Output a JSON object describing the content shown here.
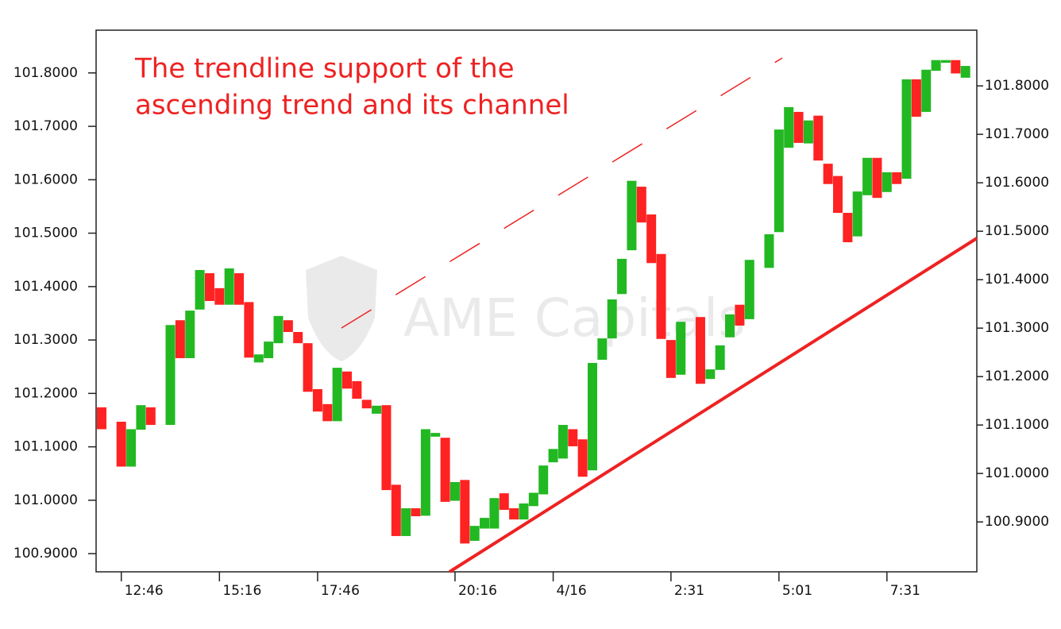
{
  "chart_data": {
    "type": "candlestick",
    "annotation": [
      "The trendline support of the",
      "ascending trend and its channel"
    ],
    "annotation_color": "#ee2222",
    "watermark": "AME Capitals",
    "up_color": "#22b822",
    "down_color": "#ff2222",
    "categories": [
      null,
      null,
      "12:46",
      null,
      null,
      null,
      null,
      null,
      null,
      null,
      null,
      null,
      "15:16",
      null,
      null,
      null,
      null,
      null,
      null,
      null,
      null,
      null,
      "17:46",
      null,
      null,
      null,
      null,
      null,
      null,
      null,
      null,
      null,
      null,
      null,
      null,
      null,
      "20:16",
      null,
      null,
      null,
      null,
      null,
      null,
      null,
      null,
      null,
      "4/16",
      null,
      null,
      null,
      null,
      null,
      null,
      null,
      null,
      null,
      null,
      null,
      "2:31",
      null,
      null,
      null,
      null,
      null,
      null,
      null,
      null,
      null,
      null,
      "5:01",
      null,
      null,
      null,
      null,
      null,
      null,
      null,
      null,
      null,
      null,
      "7:31",
      null,
      null,
      null,
      null,
      null,
      null,
      null,
      null
    ],
    "open": [
      101.174,
      null,
      101.147,
      101.063,
      101.132,
      101.174,
      null,
      101.141,
      101.337,
      101.266,
      101.357,
      101.425,
      101.397,
      101.366,
      101.425,
      101.371,
      101.258,
      101.266,
      101.294,
      101.337,
      101.315,
      101.294,
      101.208,
      101.18,
      101.148,
      101.241,
      101.223,
      101.188,
      101.162,
      101.178,
      101.029,
      100.933,
      100.985,
      100.971,
      101.119,
      101.117,
      100.999,
      101.038,
      100.924,
      100.947,
      100.947,
      101.013,
      100.985,
      100.964,
      100.989,
      101.011,
      101.071,
      101.078,
      101.133,
      101.114,
      101.056,
      101.263,
      101.303,
      101.386,
      101.468,
      101.587,
      101.535,
      101.461,
      101.3,
      101.235,
      null,
      101.343,
      101.227,
      101.244,
      101.305,
      101.366,
      101.339,
      null,
      101.435,
      101.502,
      101.66,
      101.727,
      101.668,
      101.72,
      101.63,
      101.607,
      101.538,
      101.494,
      101.571,
      101.641,
      101.577,
      101.614,
      101.602,
      101.788,
      101.727,
      101.804,
      101.819,
      101.824,
      101.791
    ],
    "close": [
      101.133,
      null,
      101.063,
      101.133,
      101.178,
      101.141,
      null,
      101.328,
      101.266,
      101.355,
      101.431,
      101.373,
      101.366,
      101.434,
      101.366,
      101.267,
      101.273,
      101.297,
      101.345,
      101.315,
      101.294,
      101.203,
      101.166,
      101.148,
      101.248,
      101.209,
      101.19,
      101.172,
      101.177,
      101.019,
      100.933,
      100.985,
      100.97,
      101.133,
      101.126,
      100.997,
      101.034,
      100.919,
      100.952,
      100.967,
      101.004,
      100.982,
      100.964,
      100.994,
      101.014,
      101.065,
      101.096,
      101.141,
      101.101,
      101.044,
      101.257,
      101.303,
      101.376,
      101.452,
      101.598,
      101.52,
      101.444,
      101.302,
      101.229,
      101.334,
      null,
      101.218,
      101.245,
      101.29,
      101.348,
      101.327,
      101.45,
      null,
      101.498,
      101.694,
      101.736,
      101.669,
      101.711,
      101.636,
      101.592,
      101.538,
      101.483,
      101.578,
      101.641,
      101.566,
      101.614,
      101.592,
      101.788,
      101.718,
      101.806,
      101.824,
      101.824,
      101.799,
      101.813
    ],
    "ylim": [
      100.866,
      101.88
    ],
    "yticks": [
      {
        "value": 100.9,
        "label": "100.9000"
      },
      {
        "value": 101.0,
        "label": "101.0000"
      },
      {
        "value": 101.1,
        "label": "101.1000"
      },
      {
        "value": 101.2,
        "label": "101.2000"
      },
      {
        "value": 101.3,
        "label": "101.3000"
      },
      {
        "value": 101.4,
        "label": "101.4000"
      },
      {
        "value": 101.5,
        "label": "101.5000"
      },
      {
        "value": 101.6,
        "label": "101.6000"
      },
      {
        "value": 101.7,
        "label": "101.7000"
      },
      {
        "value": 101.8,
        "label": "101.8000"
      }
    ],
    "y2lim": [
      100.797,
      101.915
    ],
    "y2ticks": [
      {
        "value": 100.9,
        "label": "100.9000"
      },
      {
        "value": 101.0,
        "label": "101.0000"
      },
      {
        "value": 101.1,
        "label": "101.1000"
      },
      {
        "value": 101.2,
        "label": "101.2000"
      },
      {
        "value": 101.3,
        "label": "101.3000"
      },
      {
        "value": 101.4,
        "label": "101.4000"
      },
      {
        "value": 101.5,
        "label": "101.5000"
      },
      {
        "value": 101.6,
        "label": "101.6000"
      },
      {
        "value": 101.7,
        "label": "101.7000"
      },
      {
        "value": 101.8,
        "label": "101.8000"
      }
    ]
  }
}
